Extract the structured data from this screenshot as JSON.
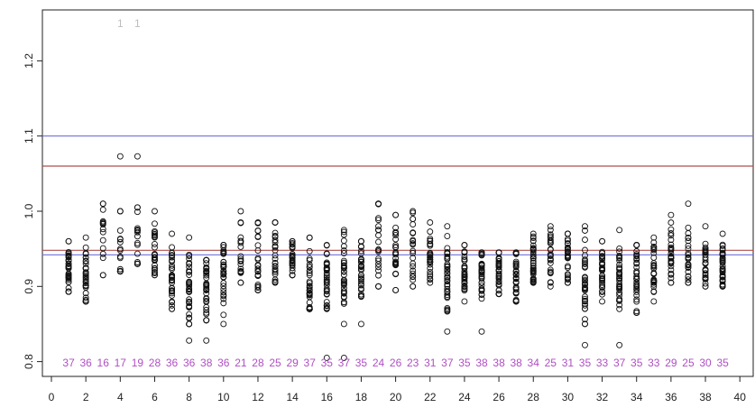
{
  "chart_data": {
    "type": "scatter",
    "x_ticks": [
      0,
      2,
      4,
      6,
      8,
      10,
      12,
      14,
      16,
      18,
      20,
      22,
      24,
      26,
      28,
      30,
      32,
      34,
      36,
      38,
      40
    ],
    "y_ticks": [
      "0.8",
      "0.9",
      "1.0",
      "1.1",
      "1.2"
    ],
    "xlim": [
      0,
      40
    ],
    "ylim": [
      0.79,
      1.27
    ],
    "grid": false,
    "reference_lines": [
      {
        "y": 1.1,
        "color": "#6f6fd8"
      },
      {
        "y": 1.06,
        "color": "#b0504a"
      },
      {
        "y": 0.948,
        "color": "#b0504a"
      },
      {
        "y": 0.942,
        "color": "#6f6fd8"
      }
    ],
    "columns": [
      {
        "x": 1,
        "count": "37",
        "center": 0.92,
        "spread": 0.02,
        "min": 0.893,
        "max": 0.96
      },
      {
        "x": 2,
        "count": "36",
        "center": 0.91,
        "spread": 0.025,
        "min": 0.88,
        "max": 0.965
      },
      {
        "x": 3,
        "count": "16",
        "center": 0.96,
        "spread": 0.03,
        "min": 0.915,
        "max": 1.01
      },
      {
        "x": 4,
        "count": "17",
        "center": 0.955,
        "spread": 0.03,
        "min": 0.92,
        "max": 1.0,
        "outliers": [
          1.073
        ]
      },
      {
        "x": 5,
        "count": "19",
        "center": 0.955,
        "spread": 0.025,
        "min": 0.93,
        "max": 1.005,
        "outliers": [
          1.073
        ]
      },
      {
        "x": 6,
        "count": "28",
        "center": 0.945,
        "spread": 0.02,
        "min": 0.915,
        "max": 1.0
      },
      {
        "x": 7,
        "count": "36",
        "center": 0.9,
        "spread": 0.025,
        "min": 0.87,
        "max": 0.97
      },
      {
        "x": 8,
        "count": "36",
        "center": 0.91,
        "spread": 0.03,
        "min": 0.85,
        "max": 0.965,
        "outliers": [
          0.828
        ]
      },
      {
        "x": 9,
        "count": "38",
        "center": 0.9,
        "spread": 0.03,
        "min": 0.855,
        "max": 0.935,
        "outliers": [
          0.828
        ]
      },
      {
        "x": 10,
        "count": "36",
        "center": 0.92,
        "spread": 0.025,
        "min": 0.85,
        "max": 0.955
      },
      {
        "x": 11,
        "count": "21",
        "center": 0.945,
        "spread": 0.025,
        "min": 0.905,
        "max": 1.0
      },
      {
        "x": 12,
        "count": "28",
        "center": 0.935,
        "spread": 0.025,
        "min": 0.895,
        "max": 0.985
      },
      {
        "x": 13,
        "count": "25",
        "center": 0.94,
        "spread": 0.025,
        "min": 0.905,
        "max": 0.985
      },
      {
        "x": 14,
        "count": "29",
        "center": 0.935,
        "spread": 0.015,
        "min": 0.915,
        "max": 0.96
      },
      {
        "x": 15,
        "count": "37",
        "center": 0.9,
        "spread": 0.025,
        "min": 0.87,
        "max": 0.965
      },
      {
        "x": 16,
        "count": "35",
        "center": 0.91,
        "spread": 0.025,
        "min": 0.87,
        "max": 0.955,
        "outliers": [
          0.805
        ]
      },
      {
        "x": 17,
        "count": "37",
        "center": 0.915,
        "spread": 0.025,
        "min": 0.85,
        "max": 0.975,
        "outliers": [
          0.805
        ]
      },
      {
        "x": 18,
        "count": "35",
        "center": 0.925,
        "spread": 0.025,
        "min": 0.85,
        "max": 0.96
      },
      {
        "x": 19,
        "count": "24",
        "center": 0.95,
        "spread": 0.03,
        "min": 0.9,
        "max": 1.01
      },
      {
        "x": 20,
        "count": "26",
        "center": 0.94,
        "spread": 0.03,
        "min": 0.895,
        "max": 0.995
      },
      {
        "x": 21,
        "count": "23",
        "center": 0.945,
        "spread": 0.025,
        "min": 0.9,
        "max": 1.0
      },
      {
        "x": 22,
        "count": "31",
        "center": 0.935,
        "spread": 0.02,
        "min": 0.905,
        "max": 0.985
      },
      {
        "x": 23,
        "count": "37",
        "center": 0.905,
        "spread": 0.025,
        "min": 0.84,
        "max": 0.98
      },
      {
        "x": 24,
        "count": "35",
        "center": 0.915,
        "spread": 0.02,
        "min": 0.88,
        "max": 0.955
      },
      {
        "x": 25,
        "count": "38",
        "center": 0.915,
        "spread": 0.02,
        "min": 0.84,
        "max": 0.945
      },
      {
        "x": 26,
        "count": "38",
        "center": 0.92,
        "spread": 0.02,
        "min": 0.89,
        "max": 0.945
      },
      {
        "x": 27,
        "count": "38",
        "center": 0.915,
        "spread": 0.02,
        "min": 0.88,
        "max": 0.945
      },
      {
        "x": 28,
        "count": "34",
        "center": 0.935,
        "spread": 0.02,
        "min": 0.905,
        "max": 0.97
      },
      {
        "x": 29,
        "count": "25",
        "center": 0.94,
        "spread": 0.025,
        "min": 0.9,
        "max": 0.98
      },
      {
        "x": 30,
        "count": "31",
        "center": 0.935,
        "spread": 0.02,
        "min": 0.905,
        "max": 0.97
      },
      {
        "x": 31,
        "count": "35",
        "center": 0.905,
        "spread": 0.03,
        "min": 0.85,
        "max": 0.98,
        "outliers": [
          0.822
        ]
      },
      {
        "x": 32,
        "count": "33",
        "center": 0.92,
        "spread": 0.02,
        "min": 0.88,
        "max": 0.96
      },
      {
        "x": 33,
        "count": "37",
        "center": 0.915,
        "spread": 0.02,
        "min": 0.87,
        "max": 0.975,
        "outliers": [
          0.822
        ]
      },
      {
        "x": 34,
        "count": "35",
        "center": 0.915,
        "spread": 0.02,
        "min": 0.865,
        "max": 0.955
      },
      {
        "x": 35,
        "count": "33",
        "center": 0.925,
        "spread": 0.02,
        "min": 0.88,
        "max": 0.965
      },
      {
        "x": 36,
        "count": "29",
        "center": 0.94,
        "spread": 0.02,
        "min": 0.905,
        "max": 0.995
      },
      {
        "x": 37,
        "count": "25",
        "center": 0.945,
        "spread": 0.025,
        "min": 0.905,
        "max": 1.01
      },
      {
        "x": 38,
        "count": "30",
        "center": 0.935,
        "spread": 0.02,
        "min": 0.9,
        "max": 0.98
      },
      {
        "x": 39,
        "count": "35",
        "center": 0.925,
        "spread": 0.02,
        "min": 0.9,
        "max": 0.97
      }
    ],
    "top_counts": [
      {
        "x": 4,
        "label": "1"
      },
      {
        "x": 5,
        "label": "1"
      }
    ]
  }
}
